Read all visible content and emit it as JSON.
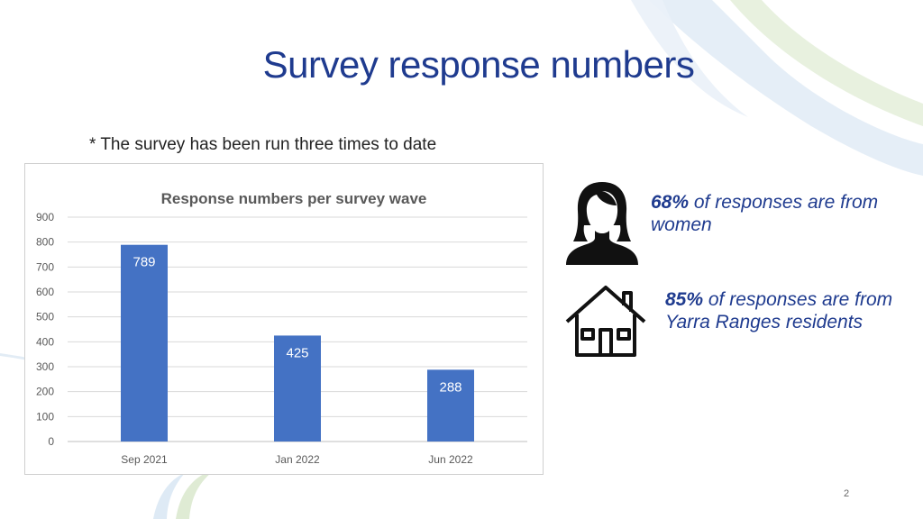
{
  "slide": {
    "title": "Survey response numbers",
    "note": "* The survey has been run three times to date",
    "page_number": "2"
  },
  "stats": [
    {
      "percent": "68%",
      "text": " of responses are from women",
      "icon": "woman-icon"
    },
    {
      "percent": "85%",
      "text": " of responses are from Yarra Ranges residents",
      "icon": "house-icon"
    }
  ],
  "colors": {
    "title": "#1f3b8f",
    "bar": "#4472c4",
    "stat_text": "#1f3b8f"
  },
  "chart_data": {
    "type": "bar",
    "title": "Response numbers per survey wave",
    "categories": [
      "Sep 2021",
      "Jan 2022",
      "Jun 2022"
    ],
    "values": [
      789,
      425,
      288
    ],
    "data_labels": [
      "789",
      "425",
      "288"
    ],
    "ylim": [
      0,
      900
    ],
    "yticks": [
      0,
      100,
      200,
      300,
      400,
      500,
      600,
      700,
      800,
      900
    ],
    "xlabel": "",
    "ylabel": "",
    "grid": true,
    "legend": "none"
  }
}
